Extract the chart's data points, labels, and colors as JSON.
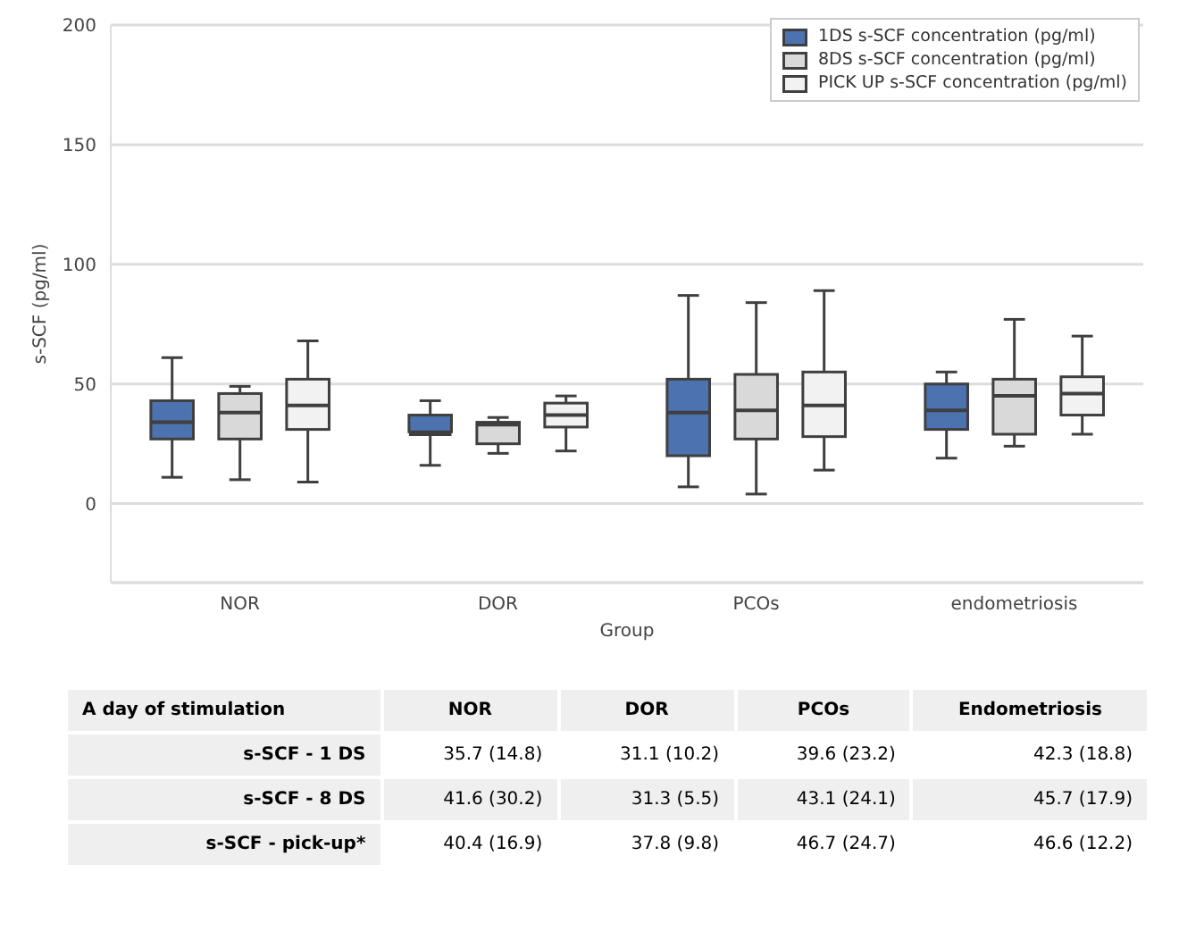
{
  "chart_data": [
    {
      "type": "box",
      "xlabel": "Group",
      "ylabel": "s-SCF (pg/ml)",
      "categories": [
        "NOR",
        "DOR",
        "PCOs",
        "endometriosis"
      ],
      "ylim": [
        -33,
        200
      ],
      "yticks": [
        0,
        50,
        100,
        150,
        200
      ],
      "grid": "y",
      "legend": "top right",
      "series": [
        {
          "name": "1DS s-SCF concentration (pg/ml)",
          "color": "#4c72b0",
          "boxes": [
            {
              "low": 11,
              "q1": 27,
              "median": 34,
              "q3": 43,
              "high": 61
            },
            {
              "low": 16,
              "q1": 30,
              "median": 29,
              "q3": 37,
              "high": 43
            },
            {
              "low": 7,
              "q1": 20,
              "median": 38,
              "q3": 52,
              "high": 87
            },
            {
              "low": 19,
              "q1": 31,
              "median": 39,
              "q3": 50,
              "high": 55
            }
          ]
        },
        {
          "name": "8DS s-SCF concentration (pg/ml)",
          "color": "#d9d9d9",
          "boxes": [
            {
              "low": 10,
              "q1": 27,
              "median": 38,
              "q3": 46,
              "high": 49
            },
            {
              "low": 21,
              "q1": 25,
              "median": 33,
              "q3": 34,
              "high": 36
            },
            {
              "low": 4,
              "q1": 27,
              "median": 39,
              "q3": 54,
              "high": 84
            },
            {
              "low": 24,
              "q1": 29,
              "median": 45,
              "q3": 52,
              "high": 77
            }
          ]
        },
        {
          "name": "PICK UP s-SCF concentration (pg/ml)",
          "color": "#f2f2f2",
          "boxes": [
            {
              "low": 9,
              "q1": 31,
              "median": 41,
              "q3": 52,
              "high": 68
            },
            {
              "low": 22,
              "q1": 32,
              "median": 37,
              "q3": 42,
              "high": 45
            },
            {
              "low": 14,
              "q1": 28,
              "median": 41,
              "q3": 55,
              "high": 89
            },
            {
              "low": 29,
              "q1": 37,
              "median": 46,
              "q3": 53,
              "high": 70
            }
          ]
        }
      ]
    },
    {
      "type": "other",
      "title": "A day of stimulation",
      "categories": [
        "NOR",
        "DOR",
        "PCOs",
        "Endometriosis"
      ],
      "y_categories": [
        "s-SCF - 1 DS",
        "s-SCF - 8 DS",
        "s-SCF - pick-up*"
      ],
      "cell_labels": [
        [
          "35.7 (14.8)",
          "31.1 (10.2)",
          "39.6 (23.2)",
          "42.3 (18.8)"
        ],
        [
          "41.6 (30.2)",
          "31.3 (5.5)",
          "43.1 (24.1)",
          "45.7 (17.9)"
        ],
        [
          "40.4 (16.9)",
          "37.8 (9.8)",
          "46.7 (24.7)",
          "46.6 (12.2)"
        ]
      ]
    }
  ]
}
